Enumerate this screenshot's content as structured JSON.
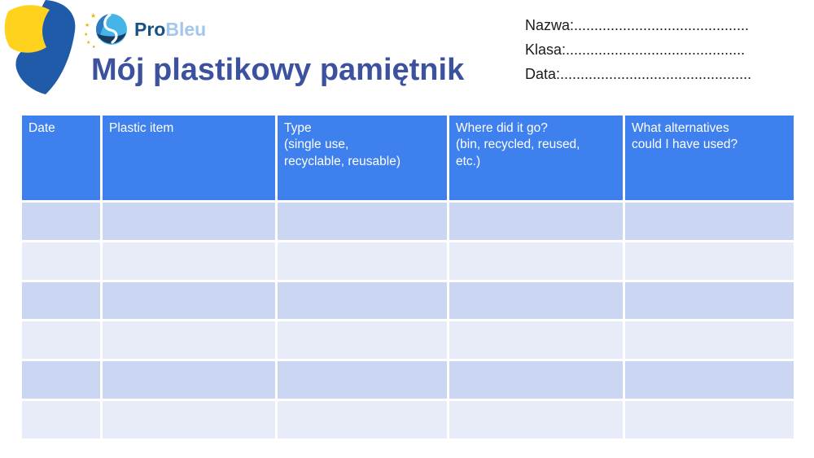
{
  "brand": {
    "pro": "Pro",
    "bleu": "Bleu",
    "icon": "globe-swirl-icon-with-stars"
  },
  "title": "Mój plastikowy pamiętnik",
  "student_fields": {
    "name_line": "Nazwa:...........................................",
    "class_line": "Klasa:............................................",
    "date_line": "Data:..............................................."
  },
  "table": {
    "headers": [
      "Date",
      "Plastic item",
      "Type\n(single use,\nrecyclable, reusable)",
      "Where did it go?\n(bin, recycled, reused,\netc.)",
      "What alternatives\ncould I have used?"
    ],
    "empty_row_count": 6,
    "columns_count": 5
  },
  "colors": {
    "table_header_bg": "#3e80ee",
    "table_header_text": "#ffffff",
    "row_alt_dark": "#cbd6f3",
    "row_alt_light": "#e8ebf8",
    "title_text": "#3c529e",
    "brand_pro": "#1c5083",
    "brand_bleu": "#a3c7ea",
    "decoration_blue": "#1f5ba8",
    "decoration_yellow": "#ffd21e",
    "logo_light_blue": "#45b4e8",
    "logo_medium_blue": "#2f7bc2",
    "logo_navy": "#1a3a5f",
    "logo_star_yellow": "#f0b400",
    "field_text": "#1b1b1b"
  }
}
